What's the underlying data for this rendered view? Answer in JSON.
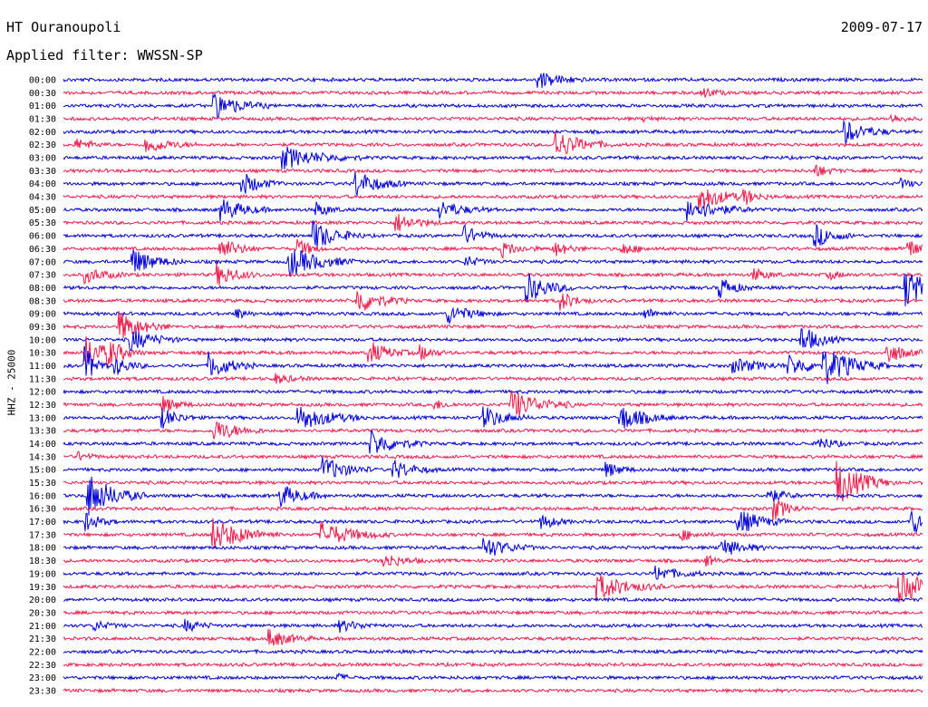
{
  "header": {
    "station": "HT Ouranoupoli",
    "date": "2009-07-17",
    "filter": "Applied filter: WWSSN-SP"
  },
  "chart_data": {
    "type": "line",
    "title": "HT Ouranoupoli",
    "subtitle": "Applied filter: WWSSN-SP",
    "ylabel": "HHZ - 25000",
    "xlabel": "",
    "row_labels": [
      "00:00",
      "00:30",
      "01:00",
      "01:30",
      "02:00",
      "02:30",
      "03:00",
      "03:30",
      "04:00",
      "04:30",
      "05:00",
      "05:30",
      "06:00",
      "06:30",
      "07:00",
      "07:30",
      "08:00",
      "08:30",
      "09:00",
      "09:30",
      "10:00",
      "10:30",
      "11:00",
      "11:30",
      "12:00",
      "12:30",
      "13:00",
      "13:30",
      "14:00",
      "14:30",
      "15:00",
      "15:30",
      "16:00",
      "16:30",
      "17:00",
      "17:30",
      "18:00",
      "18:30",
      "19:00",
      "19:30",
      "20:00",
      "20:30",
      "21:00",
      "21:30",
      "22:00",
      "22:30",
      "23:00",
      "23:30"
    ],
    "colors": [
      "#0000d8",
      "#ec1c4b"
    ],
    "grid": false,
    "legend": "none"
  }
}
